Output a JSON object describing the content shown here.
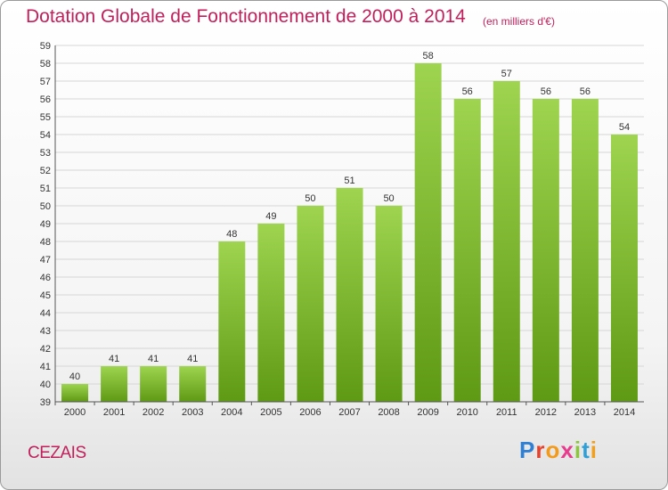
{
  "header": {
    "title": "Dotation Globale de Fonctionnement de 2000 à 2014",
    "unit": "(en milliers d'€)"
  },
  "footer": {
    "commune": "CEZAIS",
    "logo_text": "Proxiti"
  },
  "colors": {
    "title": "#c0205a",
    "bar_light": "#9ed44f",
    "bar_dark": "#5f9a14",
    "grid": "#d6d6d6",
    "axis": "#555555"
  },
  "chart_data": {
    "type": "bar",
    "title": "Dotation Globale de Fonctionnement de 2000 à 2014",
    "subtitle": "(en milliers d'€)",
    "xlabel": "",
    "ylabel": "",
    "categories": [
      "2000",
      "2001",
      "2002",
      "2003",
      "2004",
      "2005",
      "2006",
      "2007",
      "2008",
      "2009",
      "2010",
      "2011",
      "2012",
      "2013",
      "2014"
    ],
    "values": [
      40,
      41,
      41,
      41,
      48,
      49,
      50,
      51,
      50,
      58,
      56,
      57,
      56,
      56,
      54
    ],
    "ylim": [
      39,
      59
    ],
    "yticks": [
      39,
      40,
      41,
      42,
      43,
      44,
      45,
      46,
      47,
      48,
      49,
      50,
      51,
      52,
      53,
      54,
      55,
      56,
      57,
      58,
      59
    ],
    "grid": true,
    "legend": "none"
  }
}
